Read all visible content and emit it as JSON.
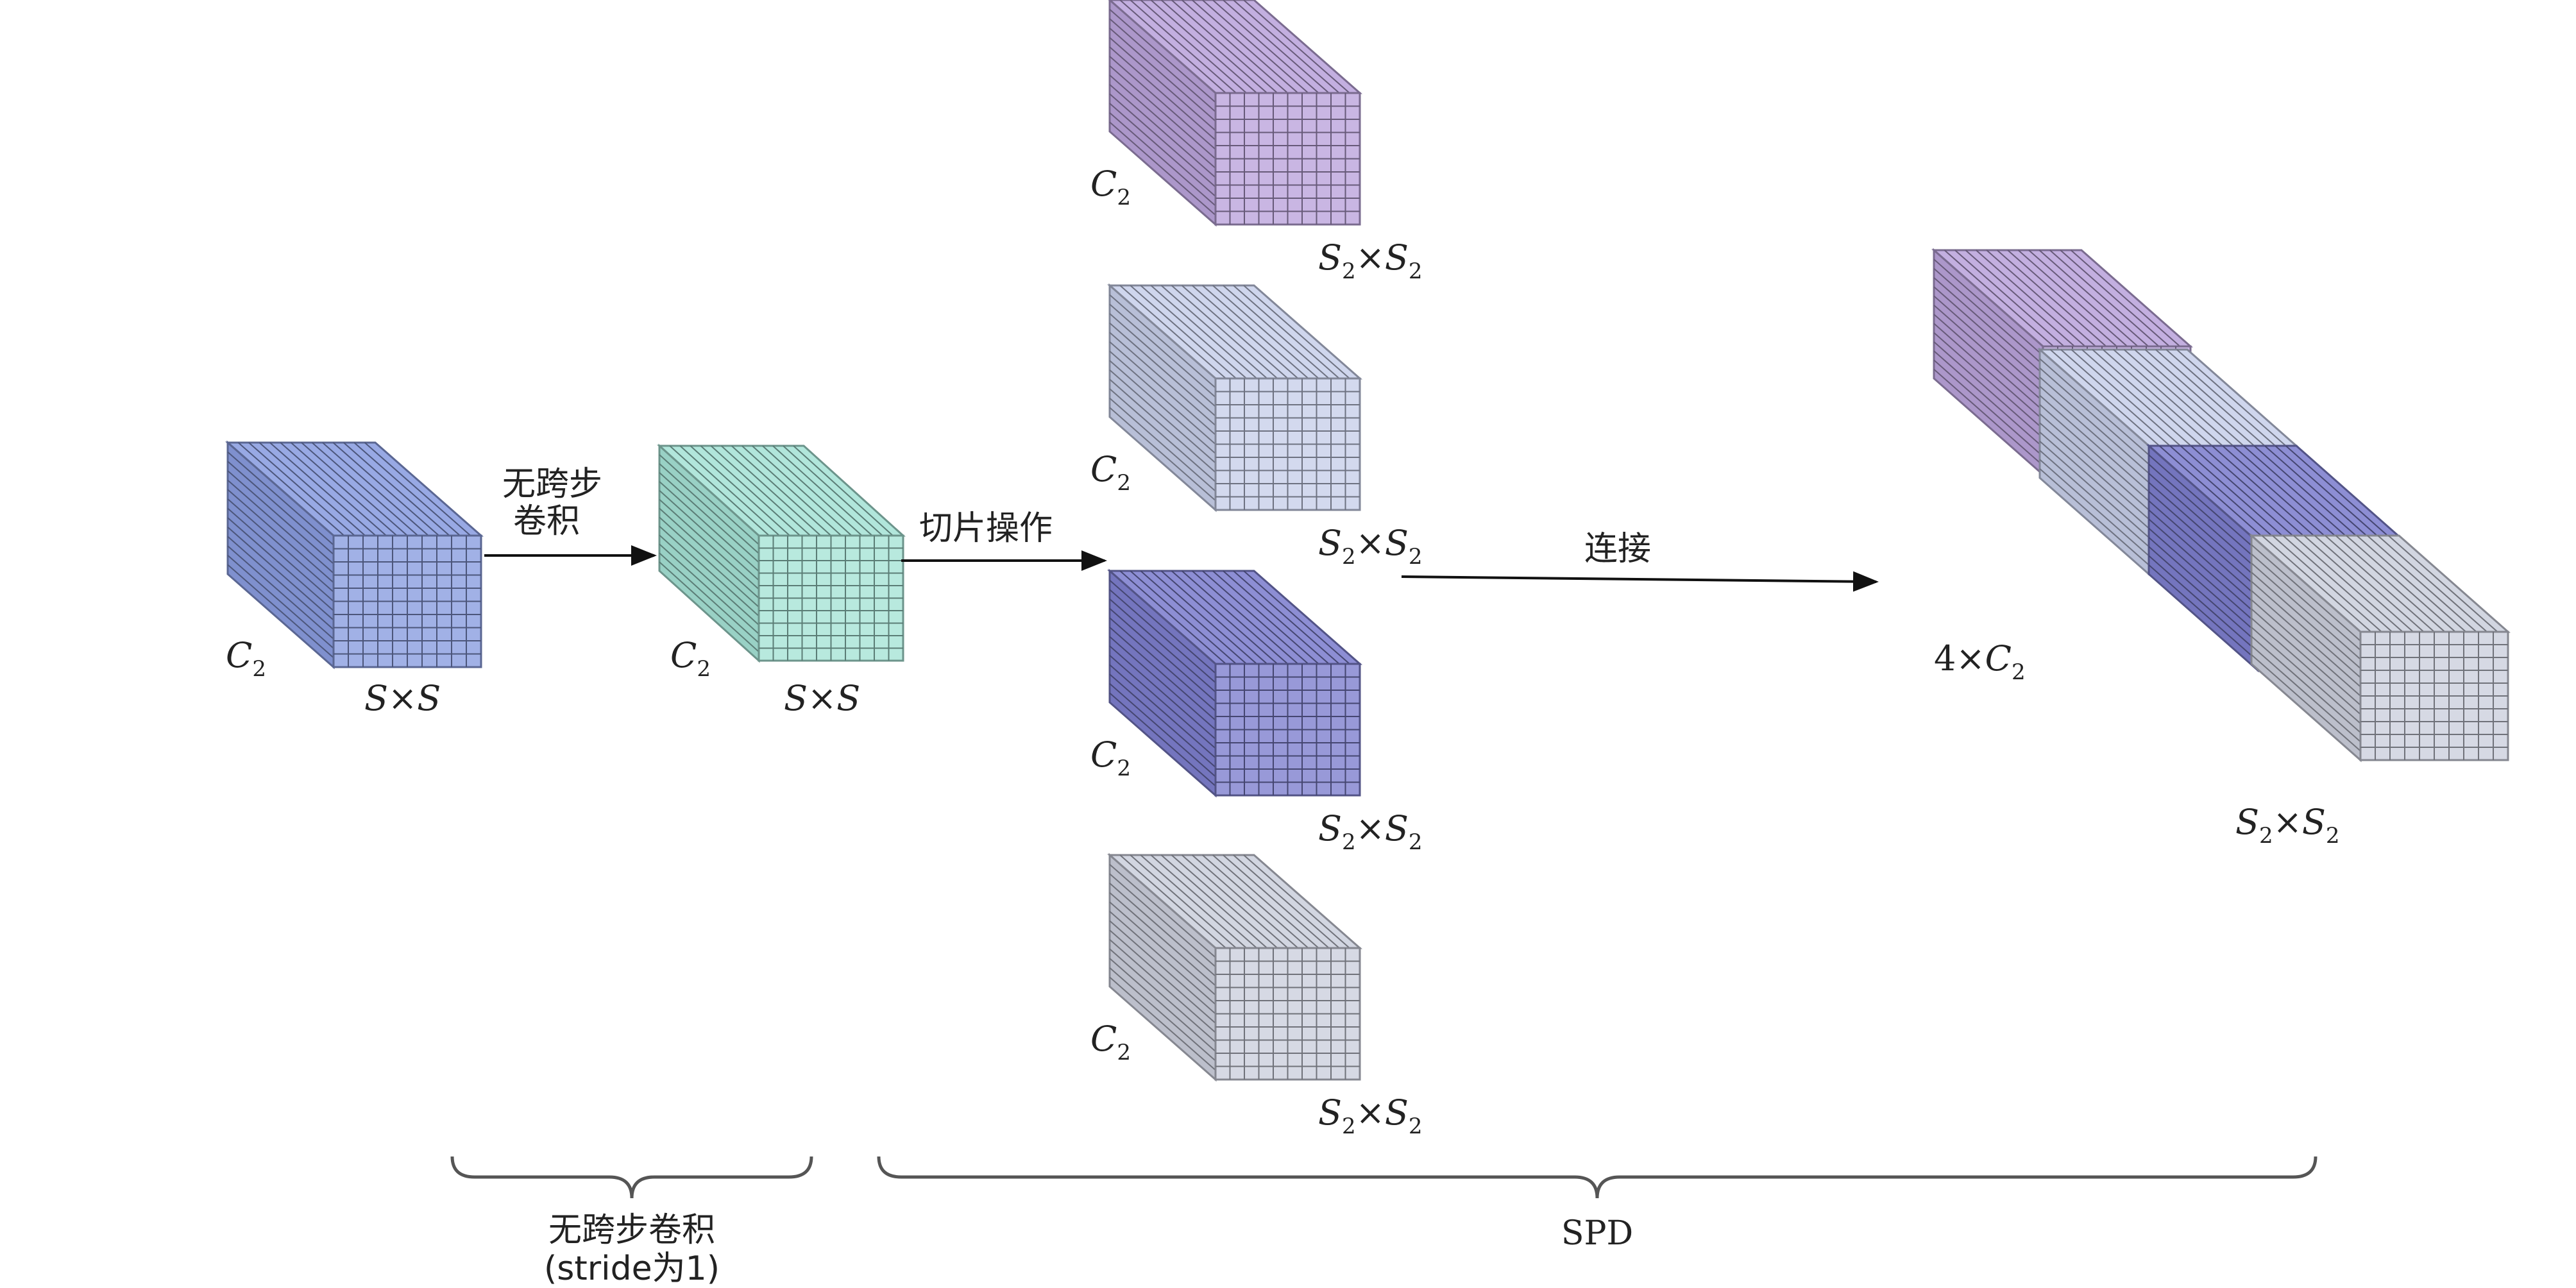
{
  "input_cube": {
    "channel": "C",
    "channel_sub": "2",
    "size": "S×S"
  },
  "conv_cube": {
    "channel": "C",
    "channel_sub": "2",
    "size": "S×S"
  },
  "slice_cubes": [
    {
      "channel": "C",
      "channel_sub": "2",
      "size_s1": "S",
      "size_sub1": "2",
      "size_times": "×",
      "size_s2": "S",
      "size_sub2": "2"
    },
    {
      "channel": "C",
      "channel_sub": "2",
      "size_s1": "S",
      "size_sub1": "2",
      "size_times": "×",
      "size_s2": "S",
      "size_sub2": "2"
    },
    {
      "channel": "C",
      "channel_sub": "2",
      "size_s1": "S",
      "size_sub1": "2",
      "size_times": "×",
      "size_s2": "S",
      "size_sub2": "2"
    },
    {
      "channel": "C",
      "channel_sub": "2",
      "size_s1": "S",
      "size_sub1": "2",
      "size_times": "×",
      "size_s2": "S",
      "size_sub2": "2"
    }
  ],
  "output_stack": {
    "channel_prefix": "4×",
    "channel": "C",
    "channel_sub": "2",
    "size_s1": "S",
    "size_sub1": "2",
    "size_times": "×",
    "size_s2": "S",
    "size_sub2": "2"
  },
  "arrows": {
    "conv_line1": "无跨步",
    "conv_line2": "卷积",
    "slice": "切片操作",
    "concat": "连接"
  },
  "braces": {
    "conv_line1": "无跨步卷积",
    "conv_line2": "(stride为1)",
    "spd": "SPD"
  },
  "colors": {
    "blue": "#8a9de0",
    "teal": "#a6e3d6",
    "purple": "#bba4dc",
    "lightblue": "#c8d0ea",
    "indigo": "#7e7fce",
    "grey": "#ccd0dd"
  }
}
